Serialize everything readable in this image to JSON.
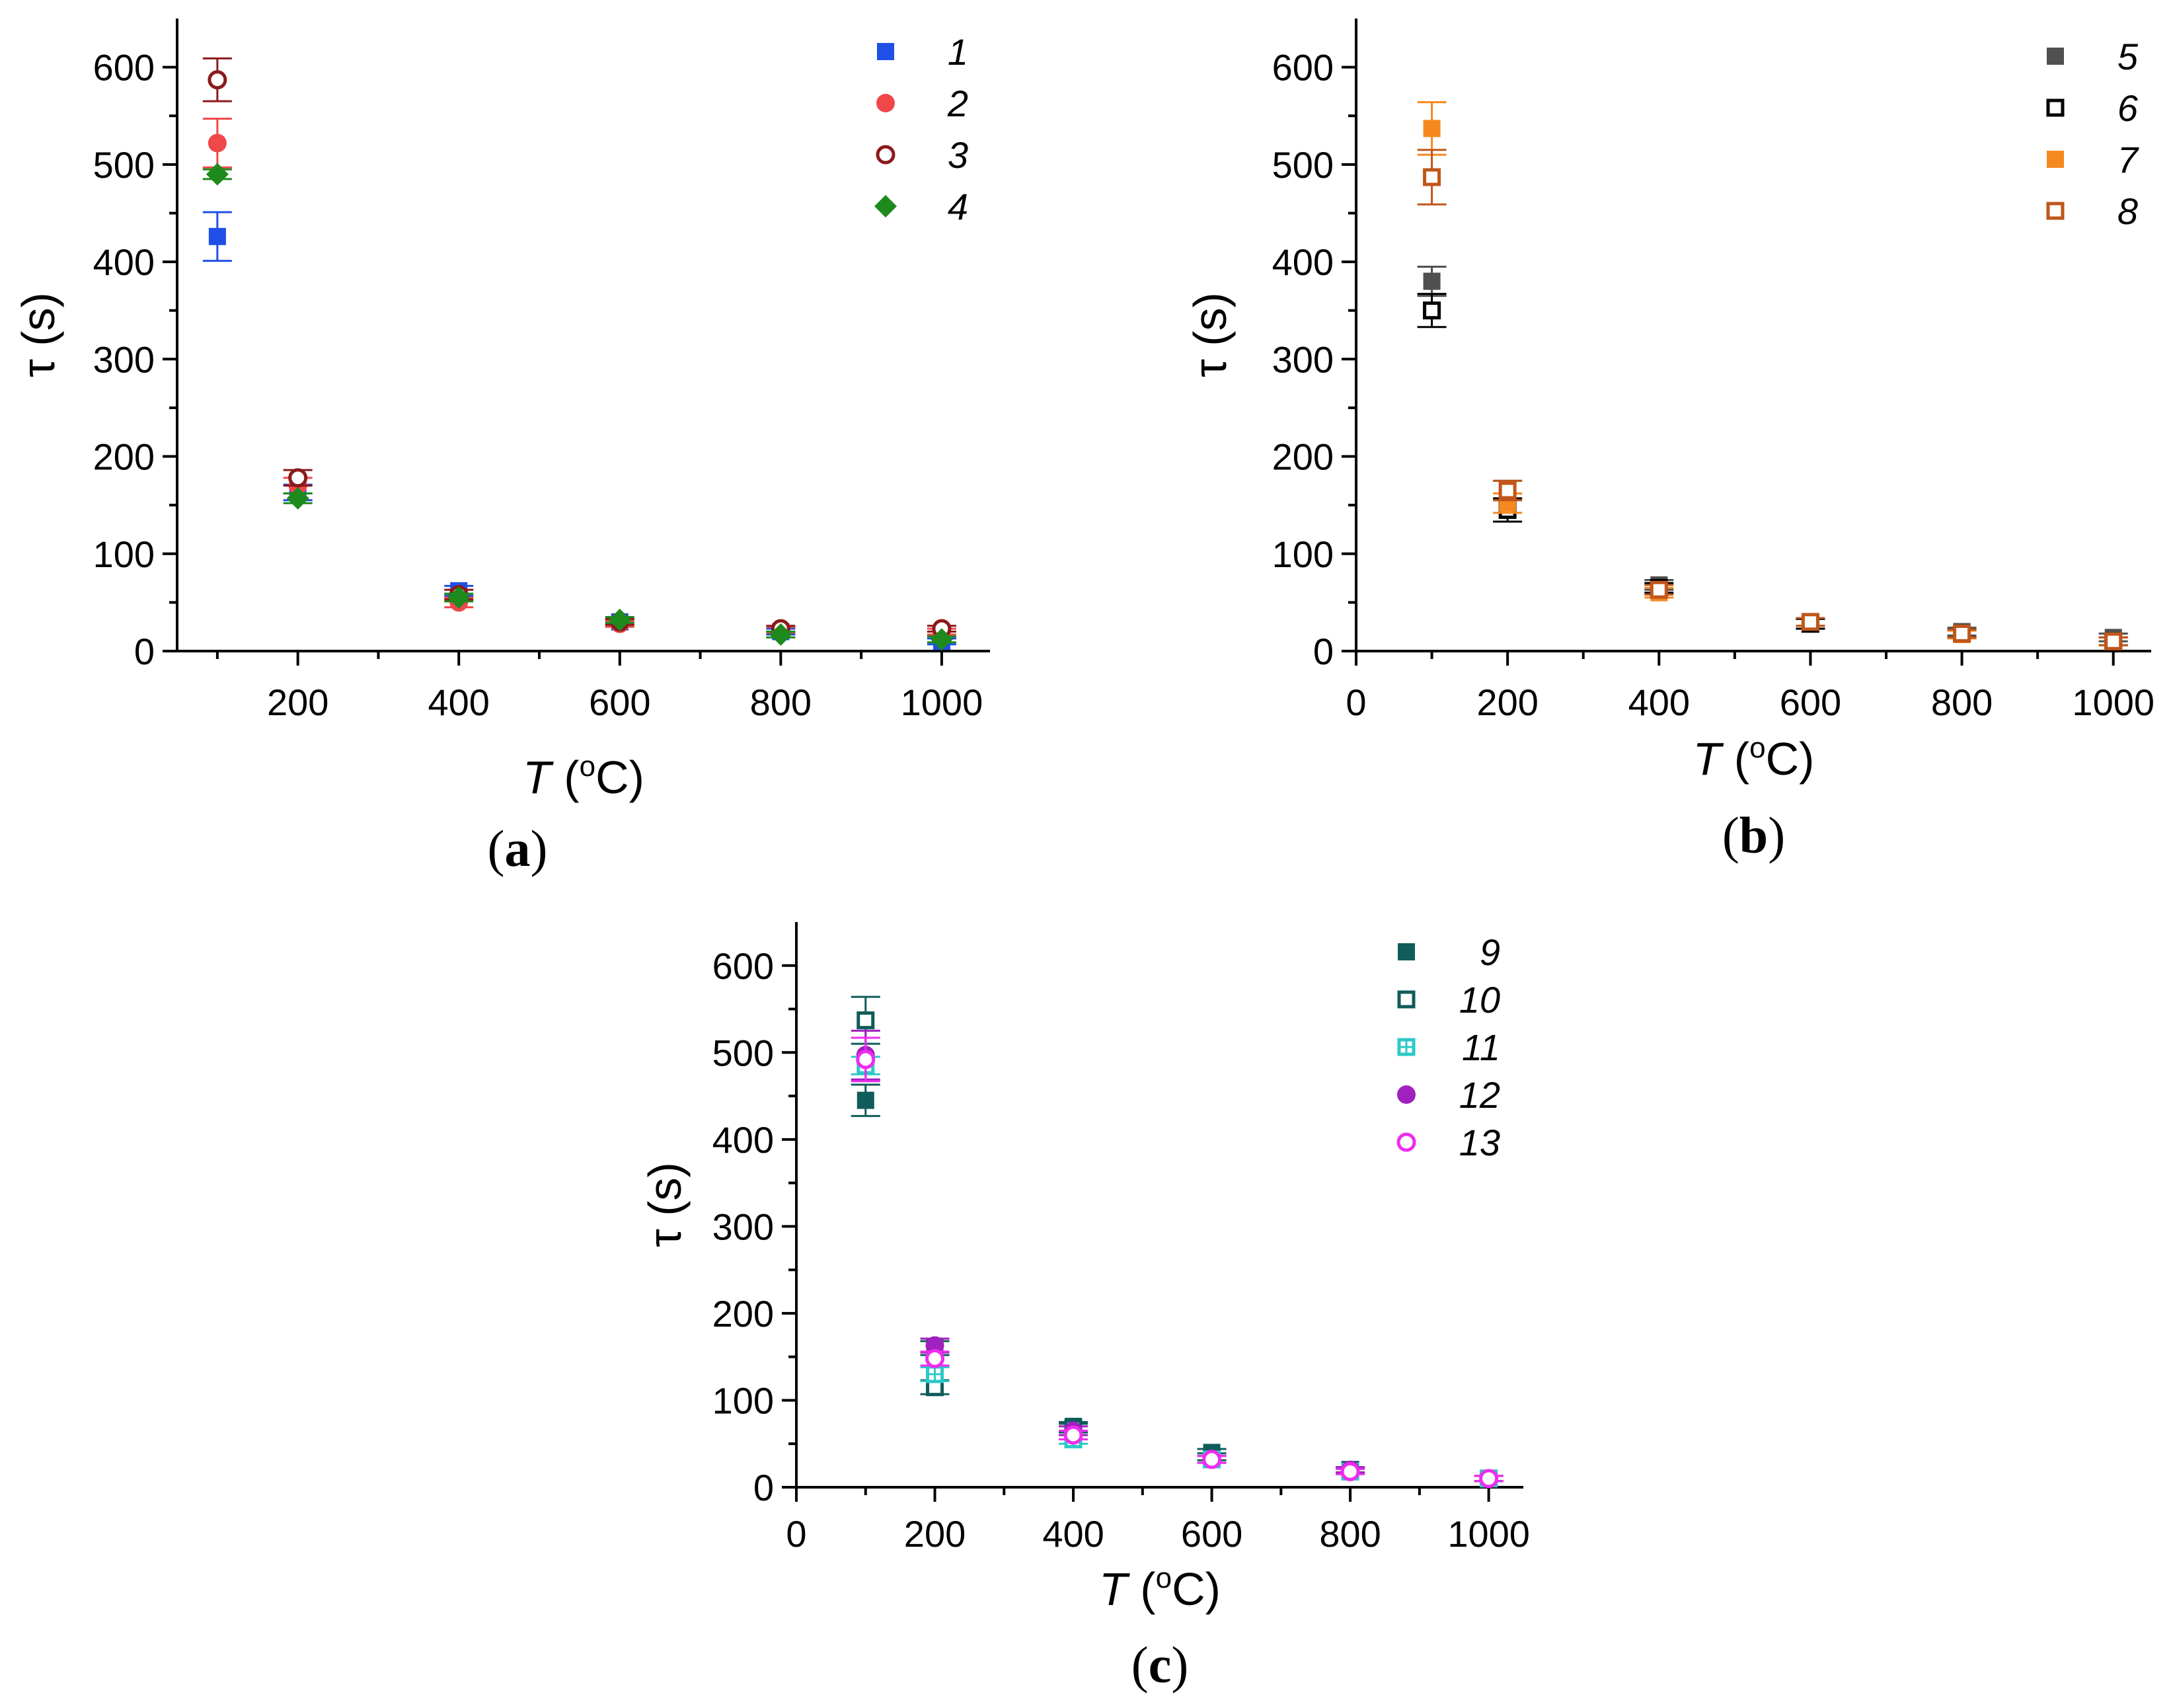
{
  "chart_data": [
    {
      "panel": "a",
      "type": "scatter",
      "panel_label_parts": [
        "(",
        "a",
        ")"
      ],
      "xlabel_var": "T",
      "xlabel_unit": "(oC)",
      "xlabel_sup": "o",
      "xlabel_rest": "C)",
      "ylabel": "τ (s)",
      "xlim": [
        50,
        1060
      ],
      "ylim": [
        0,
        650
      ],
      "xticks": [
        200,
        400,
        600,
        800,
        1000
      ],
      "yticks": [
        0,
        100,
        200,
        300,
        400,
        500,
        600
      ],
      "legend_position": "top-right",
      "series": [
        {
          "name": "1",
          "color": "#1f4fe6",
          "marker": "square-filled",
          "x": [
            100,
            200,
            400,
            600,
            800,
            1000
          ],
          "y": [
            426,
            163,
            62,
            30,
            20,
            10
          ],
          "err": [
            25,
            8,
            5,
            3,
            3,
            3
          ]
        },
        {
          "name": "2",
          "color": "#f0474a",
          "marker": "circle-filled",
          "x": [
            100,
            200,
            400,
            600,
            800,
            1000
          ],
          "y": [
            522,
            170,
            50,
            28,
            22,
            20
          ],
          "err": [
            25,
            8,
            5,
            3,
            3,
            3
          ]
        },
        {
          "name": "3",
          "color": "#8b1a1a",
          "marker": "circle-open",
          "x": [
            100,
            200,
            400,
            600,
            800,
            1000
          ],
          "y": [
            587,
            178,
            58,
            30,
            23,
            23
          ],
          "err": [
            22,
            8,
            5,
            3,
            3,
            3
          ]
        },
        {
          "name": "4",
          "color": "#1e8a1e",
          "marker": "diamond-filled",
          "x": [
            100,
            200,
            400,
            600,
            800,
            1000
          ],
          "y": [
            490,
            157,
            55,
            32,
            17,
            12
          ],
          "err": [
            5,
            5,
            4,
            3,
            3,
            3
          ]
        }
      ]
    },
    {
      "panel": "b",
      "type": "scatter",
      "panel_label_parts": [
        "(",
        "b",
        ")"
      ],
      "xlabel_var": "T",
      "xlabel_unit": "(oC)",
      "xlabel_sup": "o",
      "xlabel_rest": "C)",
      "ylabel": "τ (s)",
      "xlim": [
        0,
        1050
      ],
      "ylim": [
        0,
        650
      ],
      "xticks": [
        0,
        200,
        400,
        600,
        800,
        1000
      ],
      "yticks": [
        0,
        100,
        200,
        300,
        400,
        500,
        600
      ],
      "legend_position": "top-right",
      "series": [
        {
          "name": "5",
          "color": "#505050",
          "marker": "square-filled",
          "x": [
            100,
            200,
            400,
            600,
            800,
            1000
          ],
          "y": [
            380,
            165,
            68,
            28,
            20,
            14
          ],
          "err": [
            15,
            10,
            5,
            5,
            4,
            4
          ]
        },
        {
          "name": "6",
          "color": "#000000",
          "marker": "square-open",
          "x": [
            100,
            200,
            400,
            600,
            800,
            1000
          ],
          "y": [
            350,
            145,
            65,
            28,
            18,
            10
          ],
          "err": [
            17,
            12,
            5,
            5,
            4,
            4
          ]
        },
        {
          "name": "7",
          "color": "#f5891f",
          "marker": "square-filled",
          "x": [
            100,
            200,
            400,
            600,
            800,
            1000
          ],
          "y": [
            537,
            152,
            60,
            30,
            17,
            10
          ],
          "err": [
            27,
            10,
            5,
            4,
            4,
            4
          ]
        },
        {
          "name": "8",
          "color": "#c0561a",
          "marker": "square-open",
          "x": [
            100,
            200,
            400,
            600,
            800,
            1000
          ],
          "y": [
            487,
            165,
            63,
            30,
            18,
            10
          ],
          "err": [
            28,
            10,
            5,
            4,
            4,
            4
          ]
        }
      ]
    },
    {
      "panel": "c",
      "type": "scatter",
      "panel_label_parts": [
        "(",
        "c",
        ")"
      ],
      "xlabel_var": "T",
      "xlabel_unit": "(oC)",
      "xlabel_sup": "o",
      "xlabel_rest": "C)",
      "ylabel": "τ (s)",
      "xlim": [
        0,
        1050
      ],
      "ylim": [
        0,
        650
      ],
      "xticks": [
        0,
        200,
        400,
        600,
        800,
        1000
      ],
      "yticks": [
        0,
        100,
        200,
        300,
        400,
        500,
        600
      ],
      "legend_position": "top-right",
      "series": [
        {
          "name": "9",
          "color": "#0f5c5a",
          "marker": "square-filled",
          "x": [
            100,
            200,
            400,
            600,
            800,
            1000
          ],
          "y": [
            445,
            160,
            70,
            40,
            20,
            10
          ],
          "err": [
            18,
            8,
            5,
            4,
            3,
            3
          ]
        },
        {
          "name": "10",
          "color": "#0f5c5a",
          "marker": "square-open",
          "x": [
            100,
            200,
            400,
            600,
            800,
            1000
          ],
          "y": [
            537,
            115,
            68,
            35,
            20,
            10
          ],
          "err": [
            27,
            8,
            5,
            4,
            3,
            3
          ]
        },
        {
          "name": "11",
          "color": "#2ec8c8",
          "marker": "square-dotted",
          "x": [
            100,
            200,
            400,
            600,
            800,
            1000
          ],
          "y": [
            485,
            130,
            55,
            32,
            18,
            10
          ],
          "err": [
            10,
            8,
            5,
            4,
            3,
            3
          ]
        },
        {
          "name": "12",
          "color": "#a020c0",
          "marker": "circle-filled",
          "x": [
            100,
            200,
            400,
            600,
            800,
            1000
          ],
          "y": [
            497,
            163,
            65,
            32,
            20,
            10
          ],
          "err": [
            28,
            8,
            5,
            4,
            3,
            3
          ]
        },
        {
          "name": "13",
          "color": "#ee2cee",
          "marker": "circle-open",
          "x": [
            100,
            200,
            400,
            600,
            800,
            1000
          ],
          "y": [
            492,
            148,
            60,
            32,
            18,
            10
          ],
          "err": [
            25,
            8,
            5,
            4,
            3,
            3
          ]
        }
      ]
    }
  ]
}
